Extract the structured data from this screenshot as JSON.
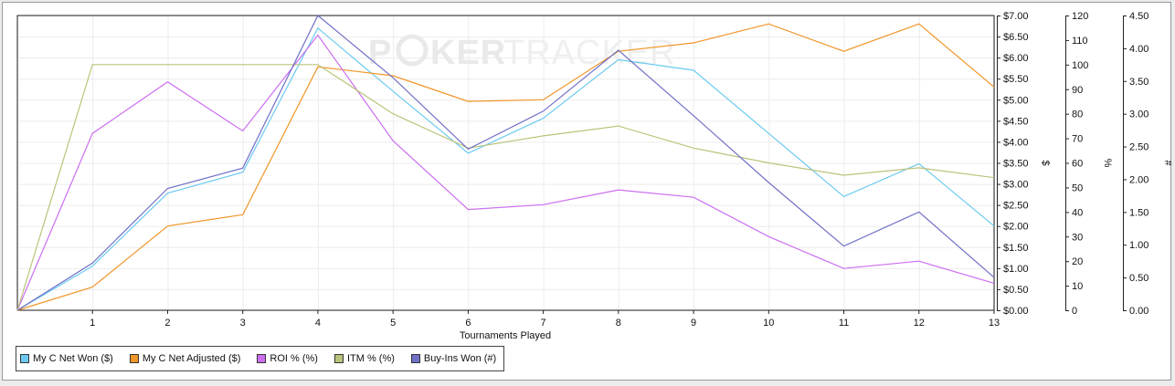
{
  "watermark": {
    "left": "P",
    "ker": "KER",
    "tracker": "TRACKER"
  },
  "legend": [
    {
      "label": "My C Net Won ($)",
      "color": "#6ccaf0"
    },
    {
      "label": "My C Net Adjusted ($)",
      "color": "#f0962a"
    },
    {
      "label": "ROI % (%)",
      "color": "#cc6ef0"
    },
    {
      "label": "ITM % (%)",
      "color": "#bcc37a"
    },
    {
      "label": "Buy-Ins Won (#)",
      "color": "#7070c8"
    }
  ],
  "chart_data": {
    "type": "line",
    "xlabel": "Tournaments Played",
    "x": [
      0,
      1,
      2,
      3,
      4,
      5,
      6,
      7,
      8,
      9,
      10,
      11,
      12,
      13
    ],
    "x_tick_labels": [
      "1",
      "2",
      "3",
      "4",
      "5",
      "6",
      "7",
      "8",
      "9",
      "10",
      "11",
      "12",
      "13"
    ],
    "axes": [
      {
        "label": "$",
        "range": [
          0,
          7
        ],
        "ticks": [
          "$0.00",
          "$0.50",
          "$1.00",
          "$1.50",
          "$2.00",
          "$2.50",
          "$3.00",
          "$3.50",
          "$4.00",
          "$4.50",
          "$5.00",
          "$5.50",
          "$6.00",
          "$6.50",
          "$7.00"
        ]
      },
      {
        "label": "%",
        "range": [
          0,
          120
        ],
        "ticks": [
          "0",
          "10",
          "20",
          "30",
          "40",
          "50",
          "60",
          "70",
          "80",
          "90",
          "100",
          "110",
          "120"
        ]
      },
      {
        "label": "#",
        "range": [
          0,
          4.5
        ],
        "ticks": [
          "0.00",
          "0.50",
          "1.00",
          "1.50",
          "2.00",
          "2.50",
          "3.00",
          "3.50",
          "4.00",
          "4.50"
        ]
      }
    ],
    "series": [
      {
        "name": "My C Net Won ($)",
        "axis": 0,
        "color": "#6ccaf0",
        "values": [
          0,
          1.05,
          2.78,
          3.28,
          6.7,
          5.2,
          3.73,
          4.56,
          5.95,
          5.7,
          4.2,
          2.7,
          3.48,
          2.0
        ]
      },
      {
        "name": "My C Net Adjusted ($)",
        "axis": 0,
        "color": "#f0962a",
        "values": [
          0,
          0.55,
          2.0,
          2.27,
          5.78,
          5.57,
          4.96,
          5.0,
          6.15,
          6.35,
          6.8,
          6.15,
          6.8,
          5.3
        ]
      },
      {
        "name": "ROI % (%)",
        "axis": 1,
        "color": "#cc6ef0",
        "values": [
          0,
          72,
          93,
          73,
          112,
          69,
          41,
          43,
          49,
          46,
          30,
          17,
          20,
          11
        ]
      },
      {
        "name": "ITM % (%)",
        "axis": 1,
        "color": "#bcc37a",
        "values": [
          0,
          100,
          100,
          100,
          100,
          80,
          66,
          71,
          75,
          66,
          60,
          55,
          58,
          54
        ]
      },
      {
        "name": "Buy-Ins Won (#)",
        "axis": 2,
        "color": "#7070c8",
        "values": [
          0,
          0.72,
          1.86,
          2.17,
          4.5,
          3.55,
          2.46,
          3.04,
          3.97,
          2.97,
          1.95,
          0.98,
          1.5,
          0.5
        ]
      }
    ],
    "grid": true,
    "legend_position": "bottom-left"
  }
}
